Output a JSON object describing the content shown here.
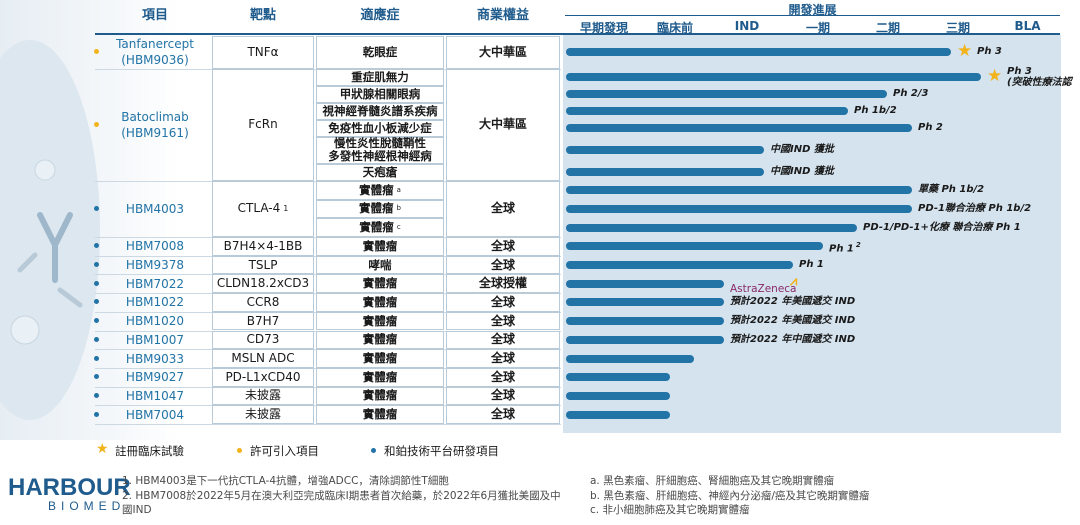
{
  "headers": {
    "project": "項目",
    "target": "靶點",
    "indication": "適應症",
    "rights": "商業權益",
    "development": "開發進展"
  },
  "stages": [
    "早期發現",
    "臨床前",
    "IND",
    "一期",
    "二期",
    "三期",
    "BLA"
  ],
  "rows": [
    {
      "project": "Tanfanercept\n(HBM9036)",
      "target": "TNFα",
      "indications": [
        "乾眼症"
      ],
      "rights": "大中華區",
      "bars": [
        {
          "progress": 0.78,
          "label": "Ph 3",
          "star": true
        }
      ]
    },
    {
      "project": "Batoclimab\n(HBM9161)",
      "target": "FcRn",
      "indications": [
        "重症肌無力",
        "甲狀腺相關眼病",
        "視神經脊髓炎譜系疾病",
        "免疫性血小板減少症",
        "慢性炎性脫髓鞘性\n多發性神經根神經病",
        "天疱瘡"
      ],
      "rights": "大中華區",
      "bars": [
        {
          "progress": 0.84,
          "label": "Ph 3\n(突破性療法認",
          "star": true
        },
        {
          "progress": 0.65,
          "label": "Ph 2/3",
          "star": false
        },
        {
          "progress": 0.57,
          "label": "Ph 1b/2",
          "star": false
        },
        {
          "progress": 0.7,
          "label": "Ph 2",
          "star": false
        },
        {
          "progress": 0.4,
          "label": "中國IND 獲批",
          "star": false
        },
        {
          "progress": 0.4,
          "label": "中國IND 獲批",
          "star": false
        }
      ]
    },
    {
      "project": "HBM4003",
      "target": "CTLA-4",
      "target_sup": "1",
      "indications": [
        "實體瘤",
        "實體瘤",
        "實體瘤"
      ],
      "ind_sups": [
        "a",
        "b",
        "c"
      ],
      "rights": "全球",
      "bars": [
        {
          "progress": 0.7,
          "label": "單藥 Ph 1b/2",
          "star": false
        },
        {
          "progress": 0.7,
          "label": "PD-1聯合治療 Ph 1b/2",
          "star": false
        },
        {
          "progress": 0.59,
          "label": "PD-1/PD-1+化療 聯合治療 Ph 1",
          "star": false
        }
      ]
    },
    {
      "project": "HBM7008",
      "target": "B7H4×4-1BB",
      "indications": [
        "實體瘤"
      ],
      "rights": "全球",
      "bars": [
        {
          "progress": 0.52,
          "label": "Ph 1",
          "label_sup": "2",
          "star": false
        }
      ]
    },
    {
      "project": "HBM9378",
      "target": "TSLP",
      "indications": [
        "哮喘"
      ],
      "rights": "全球",
      "bars": [
        {
          "progress": 0.46,
          "label": "Ph 1",
          "star": false
        }
      ]
    },
    {
      "project": "HBM7022",
      "target": "CLDN18.2xCD3",
      "indications": [
        "實體瘤"
      ],
      "rights": "全球授權",
      "bars": [
        {
          "progress": 0.32,
          "label": "AstraZeneca",
          "partner": true,
          "star": false
        }
      ]
    },
    {
      "project": "HBM1022",
      "target": "CCR8",
      "indications": [
        "實體瘤"
      ],
      "rights": "全球",
      "bars": [
        {
          "progress": 0.32,
          "label": "預計2022 年美國遞交 IND",
          "star": false
        }
      ]
    },
    {
      "project": "HBM1020",
      "target": "B7H7",
      "indications": [
        "實體瘤"
      ],
      "rights": "全球",
      "bars": [
        {
          "progress": 0.32,
          "label": "預計2022 年美國遞交 IND",
          "star": false
        }
      ]
    },
    {
      "project": "HBM1007",
      "target": "CD73",
      "indications": [
        "實體瘤"
      ],
      "rights": "全球",
      "bars": [
        {
          "progress": 0.32,
          "label": "預計2022 年中國遞交 IND",
          "star": false
        }
      ]
    },
    {
      "project": "HBM9033",
      "target": "MSLN ADC",
      "indications": [
        "實體瘤"
      ],
      "rights": "全球",
      "bars": [
        {
          "progress": 0.26,
          "label": "",
          "star": false
        }
      ]
    },
    {
      "project": "HBM9027",
      "target": "PD-L1xCD40",
      "indications": [
        "實體瘤"
      ],
      "rights": "全球",
      "bars": [
        {
          "progress": 0.21,
          "label": "",
          "star": false
        }
      ]
    },
    {
      "project": "HBM1047",
      "target": "未披露",
      "indications": [
        "實體瘤"
      ],
      "rights": "全球",
      "bars": [
        {
          "progress": 0.21,
          "label": "",
          "star": false
        }
      ]
    },
    {
      "project": "HBM7004",
      "target": "未披露",
      "indications": [
        "實體瘤"
      ],
      "rights": "全球",
      "bars": [
        {
          "progress": 0.21,
          "label": "",
          "star": false
        }
      ]
    }
  ],
  "legend": {
    "star": "註冊臨床試驗",
    "licensed": "許可引入項目",
    "platform": "和鉑技術平台研發項目"
  },
  "logo": {
    "line1": "HARBOUR",
    "line2": "BIOMED"
  },
  "footnotes_left": [
    "1.  HBM4003是下一代抗CTLA-4抗體，增強ADCC，清除調節性T細胞",
    "2.  HBM7008於2022年5月在澳大利亞完成臨床I期患者首次給藥，於2022年6月獲批美國及中",
    "     國IND"
  ],
  "footnotes_right": [
    "a.  黑色素瘤、肝細胞癌、腎細胞癌及其它晚期實體瘤",
    "b.  黑色素瘤、肝細胞癌、神經內分泌瘤/癌及其它晚期實體瘤",
    "c.  非小細胞肺癌及其它晚期實體瘤"
  ],
  "colors": {
    "brand": "#1f5b8c",
    "bar": "#2273a6",
    "star": "#f2b31b",
    "panel": "#d4e3ee"
  }
}
